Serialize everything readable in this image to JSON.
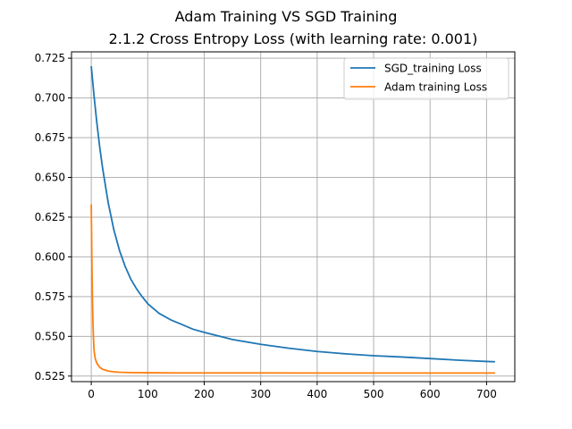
{
  "chart_data": {
    "type": "line",
    "title": "Adam Training VS SGD Training",
    "subtitle": "2.1.2 Cross Entropy Loss (with learning rate: 0.001)",
    "xlabel": "",
    "ylabel": "",
    "xlim": [
      -35,
      750
    ],
    "ylim": [
      0.5215,
      0.729
    ],
    "xticks": [
      0,
      100,
      200,
      300,
      400,
      500,
      600,
      700
    ],
    "yticks": [
      0.525,
      0.55,
      0.575,
      0.6,
      0.625,
      0.65,
      0.675,
      0.7,
      0.725
    ],
    "xtick_labels": [
      "0",
      "100",
      "200",
      "300",
      "400",
      "500",
      "600",
      "700"
    ],
    "ytick_labels": [
      "0.525",
      "0.550",
      "0.575",
      "0.600",
      "0.625",
      "0.650",
      "0.675",
      "0.700",
      "0.725"
    ],
    "grid": true,
    "legend_position": "top-right",
    "series": [
      {
        "name": "SGD_training Loss",
        "color": "#1f77b4",
        "x": [
          0,
          5,
          10,
          15,
          20,
          30,
          40,
          50,
          60,
          70,
          80,
          90,
          100,
          120,
          140,
          160,
          180,
          200,
          250,
          300,
          350,
          400,
          450,
          500,
          550,
          600,
          650,
          700,
          715
        ],
        "y": [
          0.72,
          0.701,
          0.684,
          0.669,
          0.656,
          0.634,
          0.617,
          0.604,
          0.594,
          0.586,
          0.58,
          0.575,
          0.5705,
          0.5645,
          0.5605,
          0.5575,
          0.5545,
          0.5525,
          0.548,
          0.545,
          0.5425,
          0.5405,
          0.539,
          0.5378,
          0.537,
          0.536,
          0.535,
          0.5342,
          0.534
        ]
      },
      {
        "name": "Adam training Loss",
        "color": "#ff7f0e",
        "x": [
          0,
          1,
          2,
          3,
          4,
          5,
          7,
          10,
          15,
          20,
          30,
          40,
          50,
          70,
          100,
          150,
          200,
          300,
          400,
          500,
          600,
          715
        ],
        "y": [
          0.633,
          0.6,
          0.575,
          0.558,
          0.548,
          0.541,
          0.536,
          0.533,
          0.5305,
          0.5293,
          0.5282,
          0.5277,
          0.5274,
          0.5272,
          0.5271,
          0.527,
          0.527,
          0.527,
          0.5269,
          0.5269,
          0.5269,
          0.5269
        ]
      }
    ]
  }
}
